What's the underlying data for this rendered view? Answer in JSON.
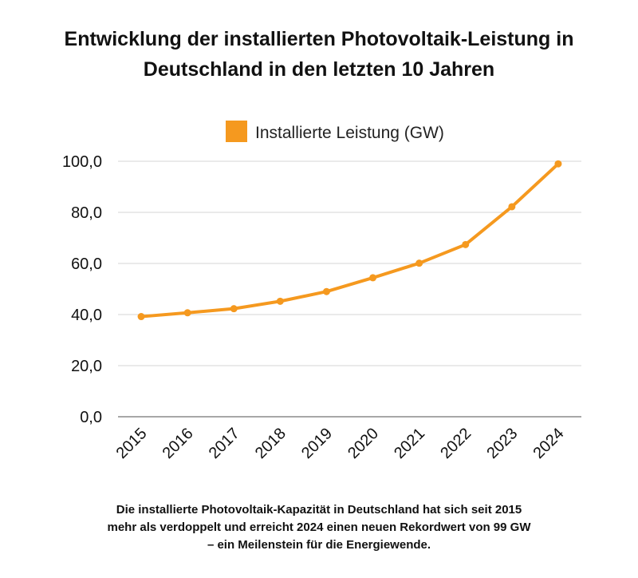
{
  "title_lines": [
    "Entwicklung der installierten Photovoltaik-Leistung in",
    "Deutschland in den letzten 10 Jahren"
  ],
  "caption_lines": [
    "Die installierte Photovoltaik-Kapazität in Deutschland hat sich seit 2015",
    "mehr als verdoppelt und erreicht 2024 einen neuen Rekordwert von 99 GW",
    "– ein Meilenstein für die Energiewende."
  ],
  "chart_data": {
    "type": "line",
    "title": "Entwicklung der installierten Photovoltaik-Leistung in Deutschland in den letzten 10 Jahren",
    "xlabel": "",
    "ylabel": "",
    "categories": [
      "2015",
      "2016",
      "2017",
      "2018",
      "2019",
      "2020",
      "2021",
      "2022",
      "2023",
      "2024"
    ],
    "series": [
      {
        "name": "Installierte Leistung (GW)",
        "values": [
          39.2,
          40.7,
          42.3,
          45.2,
          49.0,
          54.4,
          60.1,
          67.4,
          82.2,
          99.0
        ],
        "color": "#F5991F"
      }
    ],
    "ylim": [
      0,
      100
    ],
    "yticks": [
      "0,0",
      "20,0",
      "40,0",
      "60,0",
      "80,0",
      "100,0"
    ],
    "ytick_values": [
      0,
      20,
      40,
      60,
      80,
      100
    ],
    "grid": true,
    "legend_position": "top"
  }
}
